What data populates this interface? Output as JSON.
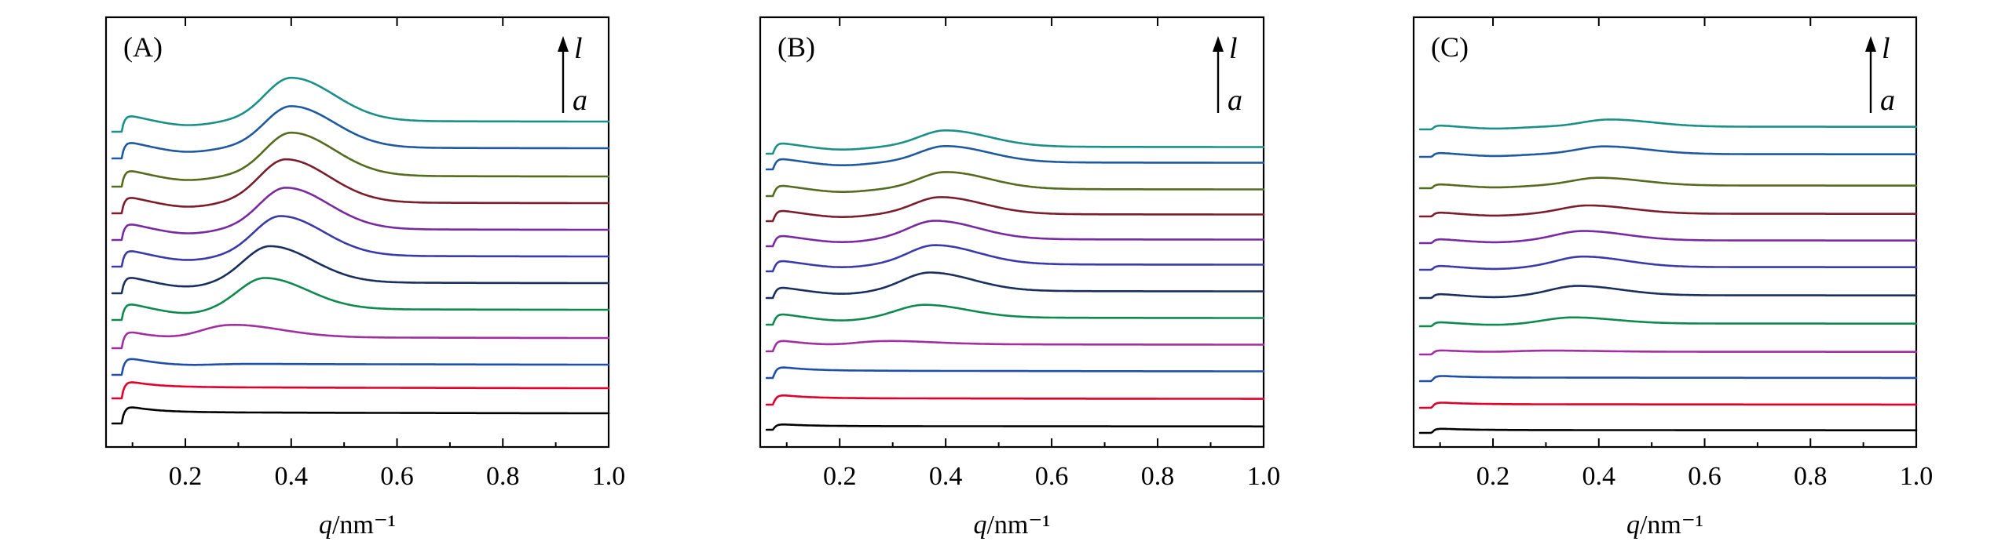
{
  "chart_data": [
    {
      "type": "line",
      "panel_label": "(A)",
      "xlabel_var": "q",
      "xlabel_unit": "/nm⁻¹",
      "xlim": [
        0.05,
        1.0
      ],
      "xticks": [
        "0.2",
        "0.4",
        "0.6",
        "0.8",
        "1.0"
      ],
      "y_axis": "stacked curves, no tick labels",
      "arrow": {
        "top": "l",
        "bottom": "a"
      },
      "grid": false,
      "series": [
        {
          "order": "a",
          "color": "#000000",
          "onset": 0.08,
          "peak_q": null,
          "peak_height": 0.0,
          "peak_width": 0.1,
          "step": 1.0,
          "valley": 0.0
        },
        {
          "order": "b",
          "color": "#e0002a",
          "onset": 0.08,
          "peak_q": null,
          "peak_height": 0.0,
          "peak_width": 0.1,
          "step": 1.0,
          "valley": 0.0
        },
        {
          "order": "c",
          "color": "#1f4fa8",
          "onset": 0.08,
          "peak_q": null,
          "peak_height": 0.0,
          "peak_width": 0.1,
          "step": 1.0,
          "valley": 0.1
        },
        {
          "order": "d",
          "color": "#a0309f",
          "onset": 0.08,
          "peak_q": 0.28,
          "peak_height": 0.75,
          "peak_width": 0.12,
          "step": 1.0,
          "valley": 0.2
        },
        {
          "order": "e",
          "color": "#0f8a4f",
          "onset": 0.08,
          "peak_q": 0.35,
          "peak_height": 1.8,
          "peak_width": 0.1,
          "step": 1.0,
          "valley": 0.3
        },
        {
          "order": "f",
          "color": "#1b2f5e",
          "onset": 0.08,
          "peak_q": 0.36,
          "peak_height": 2.1,
          "peak_width": 0.1,
          "step": 1.0,
          "valley": 0.3
        },
        {
          "order": "g",
          "color": "#3a3aa8",
          "onset": 0.08,
          "peak_q": 0.38,
          "peak_height": 2.3,
          "peak_width": 0.1,
          "step": 1.0,
          "valley": 0.3
        },
        {
          "order": "h",
          "color": "#7a2aa0",
          "onset": 0.08,
          "peak_q": 0.39,
          "peak_height": 2.4,
          "peak_width": 0.1,
          "step": 1.0,
          "valley": 0.3
        },
        {
          "order": "i",
          "color": "#7a1e2e",
          "onset": 0.08,
          "peak_q": 0.39,
          "peak_height": 2.5,
          "peak_width": 0.1,
          "step": 1.0,
          "valley": 0.3
        },
        {
          "order": "j",
          "color": "#556b1f",
          "onset": 0.08,
          "peak_q": 0.4,
          "peak_height": 2.5,
          "peak_width": 0.1,
          "step": 1.0,
          "valley": 0.3
        },
        {
          "order": "k",
          "color": "#1f5a9e",
          "onset": 0.08,
          "peak_q": 0.4,
          "peak_height": 2.4,
          "peak_width": 0.1,
          "step": 1.0,
          "valley": 0.3
        },
        {
          "order": "l",
          "color": "#1a9088",
          "onset": 0.08,
          "peak_q": 0.4,
          "peak_height": 2.5,
          "peak_width": 0.1,
          "step": 1.0,
          "valley": 0.3
        }
      ]
    },
    {
      "type": "line",
      "panel_label": "(B)",
      "xlabel_var": "q",
      "xlabel_unit": "/nm⁻¹",
      "xlim": [
        0.05,
        1.0
      ],
      "xticks": [
        "0.2",
        "0.4",
        "0.6",
        "0.8",
        "1.0"
      ],
      "y_axis": "stacked curves, no tick labels",
      "arrow": {
        "top": "l",
        "bottom": "a"
      },
      "grid": false,
      "series": [
        {
          "order": "a",
          "color": "#000000",
          "onset": 0.075,
          "peak_q": null,
          "peak_height": 0.0,
          "peak_width": 0.1,
          "step": 0.4,
          "valley": 0.0
        },
        {
          "order": "b",
          "color": "#e0002a",
          "onset": 0.075,
          "peak_q": null,
          "peak_height": 0.0,
          "peak_width": 0.1,
          "step": 0.7,
          "valley": 0.0
        },
        {
          "order": "c",
          "color": "#1f4fa8",
          "onset": 0.075,
          "peak_q": null,
          "peak_height": 0.0,
          "peak_width": 0.1,
          "step": 0.8,
          "valley": 0.0
        },
        {
          "order": "d",
          "color": "#a0309f",
          "onset": 0.075,
          "peak_q": 0.27,
          "peak_height": 0.25,
          "peak_width": 0.12,
          "step": 0.8,
          "valley": 0.15
        },
        {
          "order": "e",
          "color": "#0f8a4f",
          "onset": 0.075,
          "peak_q": 0.36,
          "peak_height": 0.9,
          "peak_width": 0.1,
          "step": 0.8,
          "valley": 0.25
        },
        {
          "order": "f",
          "color": "#1b2f5e",
          "onset": 0.075,
          "peak_q": 0.37,
          "peak_height": 1.3,
          "peak_width": 0.1,
          "step": 0.8,
          "valley": 0.25
        },
        {
          "order": "g",
          "color": "#3a3aa8",
          "onset": 0.075,
          "peak_q": 0.38,
          "peak_height": 1.35,
          "peak_width": 0.1,
          "step": 0.8,
          "valley": 0.25
        },
        {
          "order": "h",
          "color": "#7a2aa0",
          "onset": 0.075,
          "peak_q": 0.38,
          "peak_height": 1.3,
          "peak_width": 0.1,
          "step": 0.8,
          "valley": 0.25
        },
        {
          "order": "i",
          "color": "#7a1e2e",
          "onset": 0.075,
          "peak_q": 0.39,
          "peak_height": 1.2,
          "peak_width": 0.1,
          "step": 0.8,
          "valley": 0.25
        },
        {
          "order": "j",
          "color": "#556b1f",
          "onset": 0.075,
          "peak_q": 0.4,
          "peak_height": 1.2,
          "peak_width": 0.1,
          "step": 0.8,
          "valley": 0.25
        },
        {
          "order": "k",
          "color": "#1f5a9e",
          "onset": 0.075,
          "peak_q": 0.4,
          "peak_height": 1.15,
          "peak_width": 0.1,
          "step": 0.8,
          "valley": 0.25
        },
        {
          "order": "l",
          "color": "#1a9088",
          "onset": 0.075,
          "peak_q": 0.4,
          "peak_height": 1.15,
          "peak_width": 0.1,
          "step": 0.8,
          "valley": 0.25
        }
      ]
    },
    {
      "type": "line",
      "panel_label": "(C)",
      "xlabel_var": "q",
      "xlabel_unit": "/nm⁻¹",
      "xlim": [
        0.05,
        1.0
      ],
      "xticks": [
        "0.2",
        "0.4",
        "0.6",
        "0.8",
        "1.0"
      ],
      "y_axis": "stacked curves, no tick labels",
      "arrow": {
        "top": "l",
        "bottom": "a"
      },
      "grid": false,
      "series": [
        {
          "order": "a",
          "color": "#000000",
          "onset": 0.085,
          "peak_q": null,
          "peak_height": 0.0,
          "peak_width": 0.1,
          "step": 0.4,
          "valley": 0.0
        },
        {
          "order": "b",
          "color": "#e0002a",
          "onset": 0.085,
          "peak_q": null,
          "peak_height": 0.0,
          "peak_width": 0.1,
          "step": 0.5,
          "valley": 0.0
        },
        {
          "order": "c",
          "color": "#1f4fa8",
          "onset": 0.085,
          "peak_q": null,
          "peak_height": 0.0,
          "peak_width": 0.1,
          "step": 0.5,
          "valley": 0.0
        },
        {
          "order": "d",
          "color": "#a0309f",
          "onset": 0.085,
          "peak_q": 0.3,
          "peak_height": 0.1,
          "peak_width": 0.12,
          "step": 0.4,
          "valley": 0.05
        },
        {
          "order": "e",
          "color": "#0f8a4f",
          "onset": 0.085,
          "peak_q": 0.35,
          "peak_height": 0.55,
          "peak_width": 0.1,
          "step": 0.4,
          "valley": 0.15
        },
        {
          "order": "f",
          "color": "#1b2f5e",
          "onset": 0.085,
          "peak_q": 0.36,
          "peak_height": 0.85,
          "peak_width": 0.1,
          "step": 0.4,
          "valley": 0.2
        },
        {
          "order": "g",
          "color": "#3a3aa8",
          "onset": 0.085,
          "peak_q": 0.37,
          "peak_height": 0.95,
          "peak_width": 0.1,
          "step": 0.4,
          "valley": 0.2
        },
        {
          "order": "h",
          "color": "#7a2aa0",
          "onset": 0.085,
          "peak_q": 0.37,
          "peak_height": 0.85,
          "peak_width": 0.1,
          "step": 0.4,
          "valley": 0.2
        },
        {
          "order": "i",
          "color": "#7a1e2e",
          "onset": 0.085,
          "peak_q": 0.38,
          "peak_height": 0.75,
          "peak_width": 0.1,
          "step": 0.4,
          "valley": 0.2
        },
        {
          "order": "j",
          "color": "#556b1f",
          "onset": 0.085,
          "peak_q": 0.4,
          "peak_height": 0.7,
          "peak_width": 0.1,
          "step": 0.4,
          "valley": 0.2
        },
        {
          "order": "k",
          "color": "#1f5a9e",
          "onset": 0.085,
          "peak_q": 0.41,
          "peak_height": 0.7,
          "peak_width": 0.1,
          "step": 0.4,
          "valley": 0.2
        },
        {
          "order": "l",
          "color": "#1a9088",
          "onset": 0.085,
          "peak_q": 0.42,
          "peak_height": 0.65,
          "peak_width": 0.1,
          "step": 0.4,
          "valley": 0.2
        }
      ]
    }
  ]
}
